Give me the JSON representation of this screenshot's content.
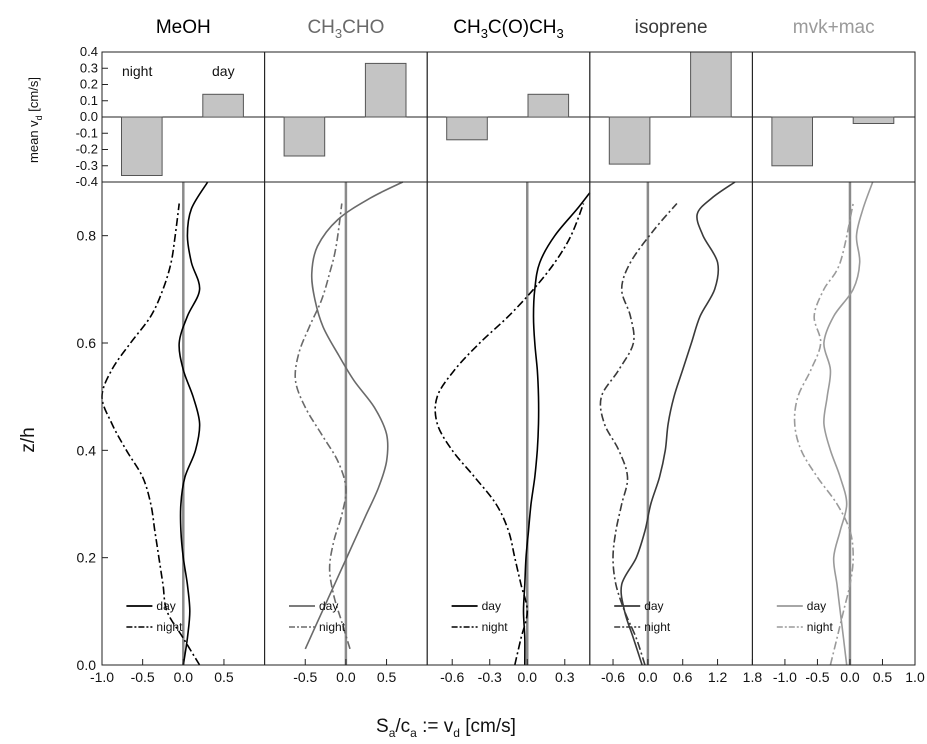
{
  "figure": {
    "xlabel_main": "S",
    "xlabel_sub1": "a",
    "xlabel_mid": "/c",
    "xlabel_sub2": "a",
    "xlabel_tail": " := v",
    "xlabel_sub3": "d",
    "xlabel_unit": " [cm/s]",
    "ylabel_main": "z/h",
    "ylabel_top_main": "mean v",
    "ylabel_top_sub": "d",
    "ylabel_top_unit": " [cm/s]",
    "annotation_night": "night",
    "annotation_day": "day",
    "legend_day": "day",
    "legend_night": "night",
    "bar_y_ticks": [
      0.4,
      0.3,
      0.2,
      0.1,
      0.0,
      -0.1,
      -0.2,
      -0.3,
      -0.4
    ],
    "bar_y_tick_labels": [
      "0.4",
      "0.3",
      "0.2",
      "0.1",
      "0.0",
      "-0.1",
      "-0.2",
      "-0.3",
      "-0.4"
    ],
    "profile_y_ticks": [
      0.0,
      0.2,
      0.4,
      0.6,
      0.8
    ],
    "profile_y_tick_labels": [
      "0.0",
      "0.2",
      "0.4",
      "0.6",
      "0.8"
    ],
    "colors": {
      "MeOH": "#000000",
      "CH3CHO": "#6a6a6a",
      "CH3C(O)CH3": "#000000",
      "isoprene": "#3a3a3a",
      "mvk+mac": "#9a9a9a",
      "bar_fill": "#c4c4c4",
      "zero_line": "#8a8a8a"
    }
  },
  "chart_data": {
    "type": "line",
    "bar_ylim": [
      -0.4,
      0.4
    ],
    "profile_ylim": [
      0.0,
      0.9
    ],
    "panels": [
      {
        "key": "MeOH",
        "title_parts": [
          {
            "t": "MeOH",
            "s": false
          }
        ],
        "xlim": [
          -1.0,
          1.0
        ],
        "xticks": [
          -1.0,
          -0.5,
          0.0,
          0.5
        ],
        "xtick_labels": [
          "-1.0",
          "-0.5",
          "0.0",
          "0.5"
        ],
        "bars": {
          "night": -0.36,
          "day": 0.14
        },
        "series": [
          {
            "name": "day",
            "style": "solid",
            "x": [
              0.0,
              0.05,
              0.08,
              0.05,
              0.0,
              -0.03,
              -0.03,
              0.02,
              0.15,
              0.2,
              0.12,
              0.0,
              -0.05,
              0.05,
              0.2,
              0.1,
              0.05,
              0.1,
              0.3
            ],
            "z": [
              0.0,
              0.05,
              0.1,
              0.15,
              0.2,
              0.25,
              0.3,
              0.35,
              0.4,
              0.45,
              0.5,
              0.55,
              0.6,
              0.65,
              0.7,
              0.75,
              0.8,
              0.85,
              0.9
            ]
          },
          {
            "name": "night",
            "style": "dashdot",
            "x": [
              0.2,
              0.0,
              -0.2,
              -0.25,
              -0.3,
              -0.35,
              -0.4,
              -0.5,
              -0.7,
              -0.88,
              -1.0,
              -0.88,
              -0.65,
              -0.4,
              -0.25,
              -0.15,
              -0.1,
              -0.05
            ],
            "z": [
              0.0,
              0.05,
              0.1,
              0.15,
              0.2,
              0.25,
              0.3,
              0.35,
              0.4,
              0.45,
              0.5,
              0.55,
              0.6,
              0.65,
              0.7,
              0.75,
              0.8,
              0.86
            ]
          }
        ]
      },
      {
        "key": "CH3CHO",
        "title_parts": [
          {
            "t": "CH",
            "s": false
          },
          {
            "t": "3",
            "s": true
          },
          {
            "t": "CHO",
            "s": false
          }
        ],
        "xlim": [
          -1.0,
          1.0
        ],
        "xticks": [
          -0.5,
          0.0,
          0.5
        ],
        "xtick_labels": [
          "-0.5",
          "0.0",
          "0.5"
        ],
        "bars": {
          "night": -0.24,
          "day": 0.33
        },
        "series": [
          {
            "name": "day",
            "style": "solid",
            "x": [
              -0.5,
              -0.35,
              -0.2,
              -0.05,
              0.1,
              0.25,
              0.4,
              0.5,
              0.5,
              0.35,
              0.1,
              -0.1,
              -0.28,
              -0.38,
              -0.42,
              -0.35,
              -0.1,
              0.3,
              0.7
            ],
            "z": [
              0.03,
              0.08,
              0.13,
              0.18,
              0.23,
              0.28,
              0.33,
              0.38,
              0.43,
              0.48,
              0.53,
              0.58,
              0.63,
              0.68,
              0.73,
              0.78,
              0.83,
              0.87,
              0.9
            ]
          },
          {
            "name": "night",
            "style": "dashdot",
            "x": [
              0.05,
              -0.05,
              -0.15,
              -0.2,
              -0.15,
              -0.05,
              0.0,
              -0.1,
              -0.3,
              -0.5,
              -0.62,
              -0.58,
              -0.45,
              -0.3,
              -0.2,
              -0.12,
              -0.05
            ],
            "z": [
              0.03,
              0.08,
              0.13,
              0.18,
              0.23,
              0.28,
              0.33,
              0.38,
              0.43,
              0.48,
              0.53,
              0.58,
              0.63,
              0.68,
              0.73,
              0.78,
              0.86
            ]
          }
        ]
      },
      {
        "key": "CH3C(O)CH3",
        "title_parts": [
          {
            "t": "CH",
            "s": false
          },
          {
            "t": "3",
            "s": true
          },
          {
            "t": "C(O)CH",
            "s": false
          },
          {
            "t": "3",
            "s": true
          }
        ],
        "xlim": [
          -0.8,
          0.5
        ],
        "xticks": [
          -0.6,
          -0.3,
          0.0,
          0.3
        ],
        "xtick_labels": [
          "-0.6",
          "-0.3",
          "0.0",
          "0.3"
        ],
        "bars": {
          "night": -0.14,
          "day": 0.14
        },
        "series": [
          {
            "name": "day",
            "style": "solid",
            "x": [
              -0.02,
              -0.02,
              -0.03,
              -0.02,
              -0.01,
              0.01,
              0.03,
              0.06,
              0.08,
              0.09,
              0.09,
              0.08,
              0.06,
              0.05,
              0.06,
              0.1,
              0.22,
              0.4,
              0.5
            ],
            "z": [
              0.0,
              0.05,
              0.1,
              0.15,
              0.2,
              0.25,
              0.3,
              0.35,
              0.4,
              0.45,
              0.5,
              0.55,
              0.6,
              0.65,
              0.7,
              0.75,
              0.8,
              0.85,
              0.88
            ]
          },
          {
            "name": "night",
            "style": "dashdot",
            "x": [
              -0.1,
              -0.05,
              0.0,
              -0.05,
              -0.1,
              -0.15,
              -0.25,
              -0.42,
              -0.6,
              -0.72,
              -0.72,
              -0.58,
              -0.38,
              -0.15,
              0.05,
              0.22,
              0.35,
              0.45
            ],
            "z": [
              0.0,
              0.05,
              0.1,
              0.15,
              0.2,
              0.25,
              0.3,
              0.35,
              0.4,
              0.45,
              0.5,
              0.55,
              0.6,
              0.65,
              0.7,
              0.75,
              0.8,
              0.86
            ]
          }
        ]
      },
      {
        "key": "isoprene",
        "title_parts": [
          {
            "t": "isoprene",
            "s": false
          }
        ],
        "xlim": [
          -1.0,
          1.8
        ],
        "xticks": [
          -0.6,
          0.0,
          0.6,
          1.2,
          1.8
        ],
        "xtick_labels": [
          "-0.6",
          "0.0",
          "0.6",
          "1.2",
          "1.8"
        ],
        "bars": {
          "night": -0.29,
          "day": 0.4
        },
        "series": [
          {
            "name": "day",
            "style": "solid",
            "x": [
              -0.1,
              -0.25,
              -0.4,
              -0.45,
              -0.2,
              -0.05,
              0.05,
              0.2,
              0.3,
              0.35,
              0.45,
              0.6,
              0.75,
              0.9,
              1.15,
              1.2,
              0.95,
              0.85,
              1.1,
              1.5
            ],
            "z": [
              0.0,
              0.05,
              0.1,
              0.15,
              0.2,
              0.25,
              0.3,
              0.35,
              0.4,
              0.45,
              0.5,
              0.55,
              0.6,
              0.65,
              0.7,
              0.75,
              0.8,
              0.84,
              0.87,
              0.9
            ]
          },
          {
            "name": "night",
            "style": "dashdot",
            "x": [
              -0.05,
              -0.2,
              -0.4,
              -0.55,
              -0.6,
              -0.55,
              -0.45,
              -0.35,
              -0.5,
              -0.75,
              -0.8,
              -0.5,
              -0.25,
              -0.3,
              -0.45,
              -0.3,
              0.1,
              0.5
            ],
            "z": [
              0.0,
              0.05,
              0.1,
              0.15,
              0.2,
              0.25,
              0.3,
              0.35,
              0.4,
              0.45,
              0.5,
              0.55,
              0.6,
              0.65,
              0.7,
              0.75,
              0.81,
              0.86
            ]
          }
        ]
      },
      {
        "key": "mvk+mac",
        "title_parts": [
          {
            "t": "mvk+mac",
            "s": false
          }
        ],
        "xlim": [
          -1.5,
          1.0
        ],
        "xticks": [
          -1.0,
          -0.5,
          0.0,
          0.5,
          1.0
        ],
        "xtick_labels": [
          "-1.0",
          "-0.5",
          "0.0",
          "0.5",
          "1.0"
        ],
        "bars": {
          "night": -0.3,
          "day": -0.04
        },
        "series": [
          {
            "name": "day",
            "style": "solid",
            "x": [
              -0.05,
              -0.1,
              -0.15,
              -0.2,
              -0.25,
              -0.15,
              -0.05,
              -0.15,
              -0.3,
              -0.4,
              -0.35,
              -0.3,
              -0.4,
              -0.25,
              0.05,
              0.15,
              0.1,
              0.2,
              0.35
            ],
            "z": [
              0.0,
              0.05,
              0.1,
              0.15,
              0.2,
              0.25,
              0.3,
              0.35,
              0.4,
              0.45,
              0.5,
              0.55,
              0.6,
              0.65,
              0.7,
              0.75,
              0.8,
              0.85,
              0.9
            ]
          },
          {
            "name": "night",
            "style": "dashdot",
            "x": [
              -0.3,
              -0.2,
              -0.1,
              0.0,
              0.05,
              0.0,
              -0.2,
              -0.5,
              -0.75,
              -0.85,
              -0.8,
              -0.6,
              -0.45,
              -0.55,
              -0.4,
              -0.15,
              0.05
            ],
            "z": [
              0.0,
              0.05,
              0.1,
              0.15,
              0.2,
              0.25,
              0.3,
              0.35,
              0.4,
              0.45,
              0.5,
              0.55,
              0.6,
              0.65,
              0.7,
              0.75,
              0.86
            ]
          }
        ]
      }
    ]
  }
}
